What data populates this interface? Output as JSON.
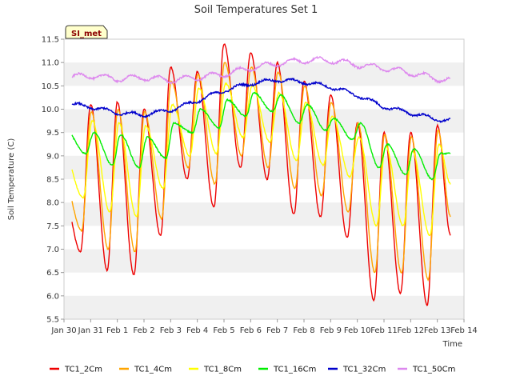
{
  "chart_data": {
    "type": "line",
    "title": "Soil Temperatures Set 1",
    "xlabel": "Time",
    "ylabel": "Soil Temperature (C)",
    "site_label": "SI_met",
    "ylim": [
      5.5,
      11.5
    ],
    "xlim": [
      0,
      15
    ],
    "yticks": [
      5.5,
      6.0,
      6.5,
      7.0,
      7.5,
      8.0,
      8.5,
      9.0,
      9.5,
      10.0,
      10.5,
      11.0,
      11.5
    ],
    "ytick_labels": [
      "5.5",
      "6.0",
      "6.5",
      "7.0",
      "7.5",
      "8.0",
      "8.5",
      "9.0",
      "9.5",
      "10.0",
      "10.5",
      "11.0",
      "11.5"
    ],
    "xtick_labels": [
      "Jan 30",
      "Jan 31",
      "Feb 1",
      "Feb 2",
      "Feb 3",
      "Feb 4",
      "Feb 5",
      "Feb 6",
      "Feb 7",
      "Feb 8",
      "Feb 9",
      "Feb 10",
      "Feb 11",
      "Feb 12",
      "Feb 13",
      "Feb 14"
    ],
    "grid": "horizontal bands",
    "legend_position": "bottom",
    "series": [
      {
        "name": "TC1_2Cm",
        "color": "#ee0000",
        "min": [
          6.95,
          6.55,
          6.45,
          7.3,
          8.5,
          7.9,
          8.75,
          8.5,
          7.75,
          7.7,
          7.25,
          5.9,
          6.05,
          5.8
        ],
        "max": [
          8.15,
          10.1,
          10.15,
          10.0,
          10.9,
          10.8,
          11.4,
          11.2,
          11.0,
          10.6,
          10.3,
          9.7,
          9.5,
          9.5,
          9.65
        ],
        "end": 7.3
      },
      {
        "name": "TC1_4Cm",
        "color": "#ffa500",
        "min": [
          7.4,
          7.0,
          6.95,
          7.65,
          8.75,
          8.4,
          9.0,
          8.75,
          8.3,
          8.15,
          7.8,
          6.5,
          6.5,
          6.35
        ],
        "max": [
          8.5,
          9.95,
          10.0,
          9.95,
          10.6,
          10.75,
          11.0,
          10.9,
          10.8,
          10.5,
          10.15,
          9.7,
          9.45,
          9.4,
          9.55
        ],
        "end": 7.7
      },
      {
        "name": "TC1_8Cm",
        "color": "#ffff00",
        "min": [
          8.1,
          7.8,
          7.7,
          8.3,
          9.0,
          9.05,
          9.4,
          9.3,
          8.9,
          8.8,
          8.55,
          7.5,
          7.5,
          7.3
        ],
        "max": [
          9.05,
          9.75,
          9.7,
          9.65,
          10.1,
          10.45,
          10.55,
          10.5,
          10.35,
          10.15,
          9.85,
          9.4,
          9.2,
          9.1,
          9.25
        ],
        "end": 8.4
      },
      {
        "name": "TC1_16Cm",
        "color": "#00ee00",
        "min": [
          9.05,
          8.8,
          8.75,
          8.95,
          9.5,
          9.6,
          9.85,
          9.95,
          9.7,
          9.55,
          9.35,
          8.75,
          8.6,
          8.5
        ],
        "max": [
          9.6,
          9.5,
          9.45,
          9.4,
          9.7,
          10.0,
          10.2,
          10.35,
          10.3,
          10.1,
          9.8,
          9.7,
          9.25,
          9.15,
          9.05
        ],
        "end": 9.05
      },
      {
        "name": "TC1_32Cm",
        "color": "#0000cc",
        "trend": [
          [
            0,
            10.12
          ],
          [
            1,
            10.05
          ],
          [
            2,
            9.92
          ],
          [
            3,
            9.88
          ],
          [
            4,
            9.98
          ],
          [
            5,
            10.18
          ],
          [
            6,
            10.4
          ],
          [
            7,
            10.55
          ],
          [
            8,
            10.63
          ],
          [
            9,
            10.58
          ],
          [
            10,
            10.48
          ],
          [
            11,
            10.3
          ],
          [
            12,
            10.05
          ],
          [
            13,
            9.92
          ],
          [
            14,
            9.78
          ],
          [
            14.5,
            9.75
          ]
        ],
        "amp": 0.04
      },
      {
        "name": "TC1_50Cm",
        "color": "#dd88ee",
        "trend": [
          [
            0,
            10.68
          ],
          [
            1,
            10.72
          ],
          [
            2,
            10.65
          ],
          [
            3,
            10.68
          ],
          [
            4,
            10.62
          ],
          [
            5,
            10.68
          ],
          [
            6,
            10.75
          ],
          [
            7,
            10.88
          ],
          [
            8,
            10.98
          ],
          [
            9,
            11.05
          ],
          [
            10,
            11.05
          ],
          [
            11,
            10.95
          ],
          [
            12,
            10.88
          ],
          [
            13,
            10.78
          ],
          [
            14,
            10.65
          ],
          [
            14.5,
            10.62
          ]
        ],
        "amp": 0.06
      }
    ]
  }
}
